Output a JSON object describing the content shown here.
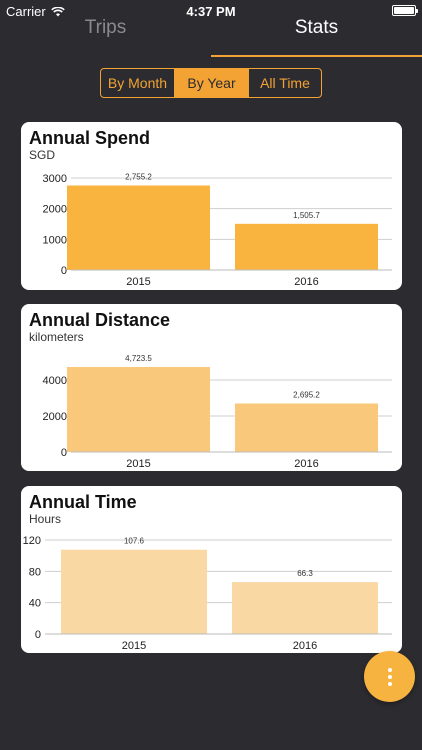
{
  "status_bar": {
    "carrier": "Carrier",
    "time": "4:37 PM"
  },
  "tabs": [
    {
      "label": "Trips",
      "active": false
    },
    {
      "label": "Stats",
      "active": true
    }
  ],
  "segmented": {
    "options": [
      "By Month",
      "By Year",
      "All Time"
    ],
    "selected": "By Year"
  },
  "colors": {
    "background": "#2c2b30",
    "accent": "#f3a333",
    "spend_bar": "#f8b43e",
    "distance_bar": "#f9c87a",
    "time_bar": "#f9d8a3"
  },
  "cards": [
    {
      "title": "Annual Spend",
      "subtitle": "SGD"
    },
    {
      "title": "Annual Distance",
      "subtitle": "kilometers"
    },
    {
      "title": "Annual Time",
      "subtitle": "Hours"
    }
  ],
  "chart_data": [
    {
      "type": "bar",
      "title": "Annual Spend",
      "subtitle": "SGD",
      "categories": [
        "2015",
        "2016"
      ],
      "values": [
        2755.2,
        1505.7
      ],
      "value_labels": [
        "2,755.2",
        "1,505.7"
      ],
      "yticks": [
        "0",
        "1000",
        "2000",
        "3000"
      ],
      "ylim": [
        0,
        3000
      ],
      "color": "#f8b43e"
    },
    {
      "type": "bar",
      "title": "Annual Distance",
      "subtitle": "kilometers",
      "categories": [
        "2015",
        "2016"
      ],
      "values": [
        4723.5,
        2695.2
      ],
      "value_labels": [
        "4,723.5",
        "2,695.2"
      ],
      "yticks": [
        "0",
        "2000",
        "4000"
      ],
      "ylim": [
        0,
        5000
      ],
      "color": "#f9c87a"
    },
    {
      "type": "bar",
      "title": "Annual Time",
      "subtitle": "Hours",
      "categories": [
        "2015",
        "2016"
      ],
      "values": [
        107.6,
        66.3
      ],
      "value_labels": [
        "107.6",
        "66.3"
      ],
      "yticks": [
        "0",
        "40",
        "80",
        "120"
      ],
      "ylim": [
        0,
        120
      ],
      "color": "#f9d8a3"
    }
  ],
  "fab": {
    "icon": "more-vertical-icon"
  }
}
